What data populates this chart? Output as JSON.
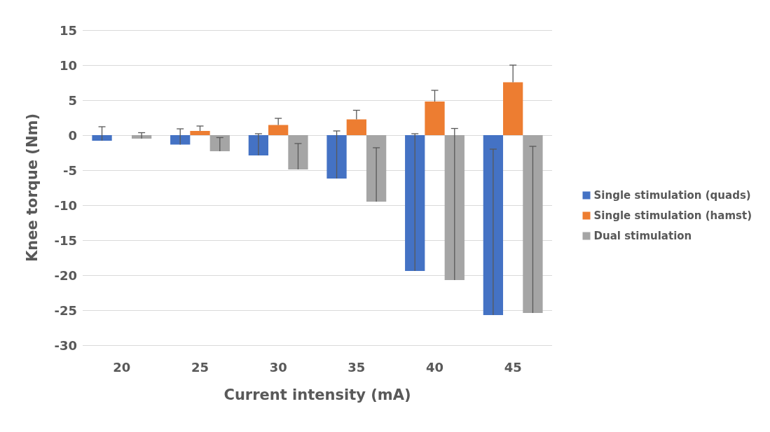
{
  "chart_data": {
    "type": "bar",
    "xlabel": "Current intensity (mA)",
    "ylabel": "Knee torque (Nm)",
    "categories": [
      "20",
      "25",
      "30",
      "35",
      "40",
      "45"
    ],
    "series": [
      {
        "name": "Single stimulation (quads)",
        "color": "#4472c4",
        "values": [
          -0.8,
          -1.35,
          -2.9,
          -6.2,
          -19.4,
          -25.7
        ],
        "errors": [
          [
            -0.8,
            1.2
          ],
          [
            -1.35,
            0.9
          ],
          [
            -2.9,
            0.2
          ],
          [
            -6.2,
            0.6
          ],
          [
            -19.4,
            0.2
          ],
          [
            -25.7,
            -2.0
          ]
        ]
      },
      {
        "name": "Single stimulation (hamst)",
        "color": "#ed7d31",
        "values": [
          null,
          0.6,
          1.45,
          2.25,
          4.8,
          7.55
        ],
        "errors": [
          null,
          [
            0.6,
            1.3
          ],
          [
            1.45,
            2.4
          ],
          [
            2.25,
            3.55
          ],
          [
            4.8,
            6.4
          ],
          [
            7.55,
            10.0
          ]
        ]
      },
      {
        "name": "Dual stimulation",
        "color": "#a5a5a5",
        "values": [
          -0.5,
          -2.3,
          -4.9,
          -9.5,
          -20.7,
          -25.4
        ],
        "errors": [
          [
            -0.5,
            0.35
          ],
          [
            -2.3,
            -0.35
          ],
          [
            -4.9,
            -1.2
          ],
          [
            -9.5,
            -1.8
          ],
          [
            -20.7,
            0.95
          ],
          [
            -25.4,
            -1.6
          ]
        ]
      }
    ],
    "ylim": [
      -30,
      15
    ],
    "yticks": [
      -30,
      -25,
      -20,
      -15,
      -10,
      -5,
      0,
      5,
      10,
      15
    ],
    "grid": "y",
    "legend": "right"
  }
}
